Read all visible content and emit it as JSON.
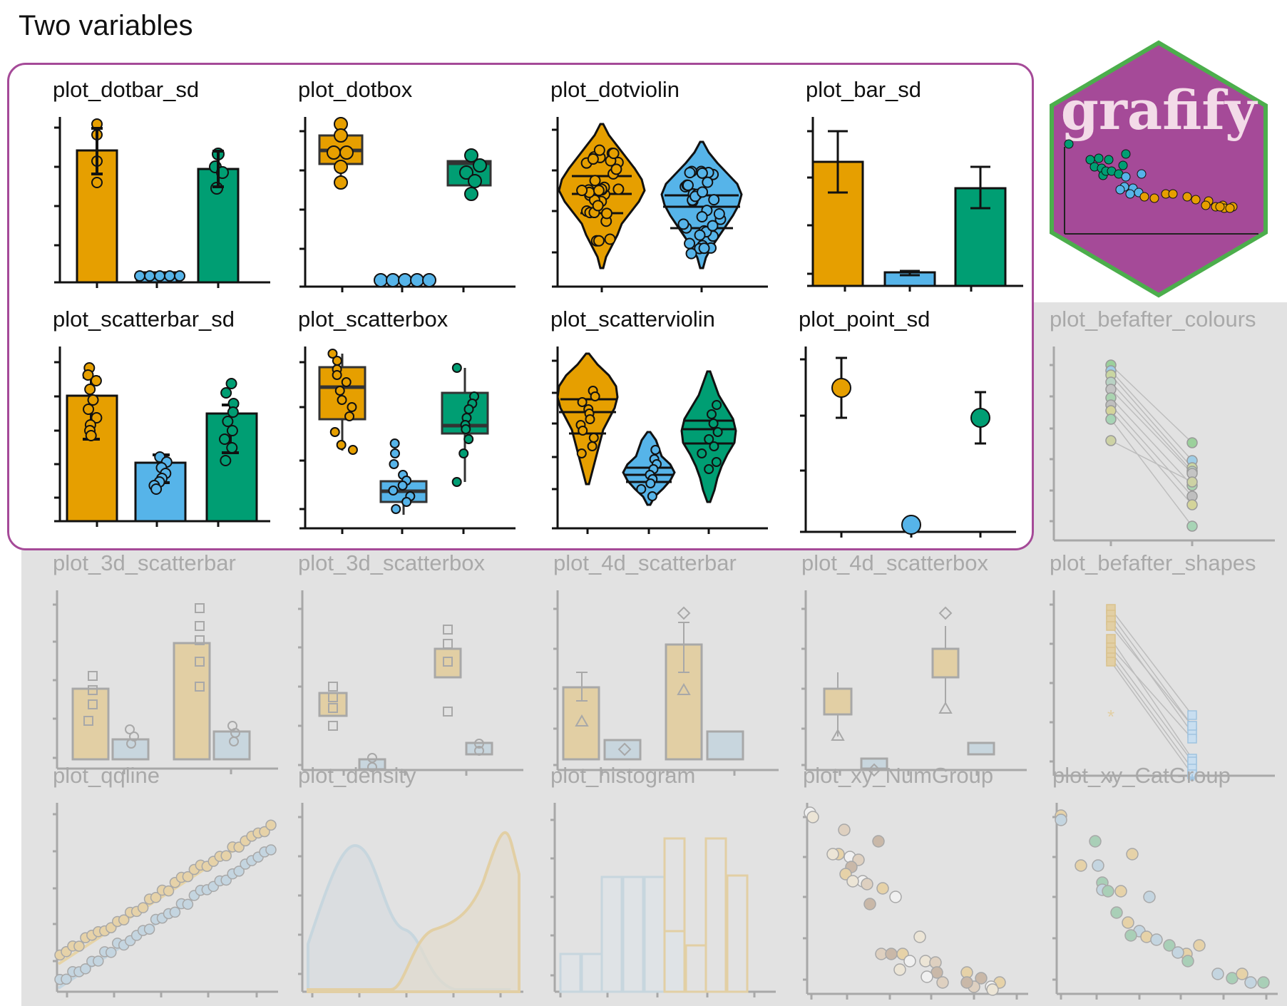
{
  "page": {
    "title": "Two variables"
  },
  "colors": {
    "highlight_border": "#a54a98",
    "dim_background": "#e2e2e2",
    "orange": "#e69f00",
    "blue": "#56b4e9",
    "green": "#009e73",
    "logo_fill": "#a54a98",
    "logo_border": "#4cae4c"
  },
  "logo": {
    "text": "grafify"
  },
  "panels": [
    {
      "id": "dotbar",
      "title": "plot_dotbar_sd",
      "active": true
    },
    {
      "id": "dotbox",
      "title": "plot_dotbox",
      "active": true
    },
    {
      "id": "dotviolin",
      "title": "plot_dotviolin",
      "active": true
    },
    {
      "id": "barsd",
      "title": "plot_bar_sd",
      "active": true
    },
    {
      "id": "scatterbar",
      "title": "plot_scatterbar_sd",
      "active": true
    },
    {
      "id": "scatterbox",
      "title": "plot_scatterbox",
      "active": true
    },
    {
      "id": "scatterviolin",
      "title": "plot_scatterviolin",
      "active": true
    },
    {
      "id": "pointsd",
      "title": "plot_point_sd",
      "active": true
    },
    {
      "id": "befafter_colours",
      "title": "plot_befafter_colours",
      "active": false
    },
    {
      "id": "3dbar",
      "title": "plot_3d_scatterbar",
      "active": false
    },
    {
      "id": "3dbox",
      "title": "plot_3d_scatterbox",
      "active": false
    },
    {
      "id": "4dbar",
      "title": "plot_4d_scatterbar",
      "active": false
    },
    {
      "id": "4dbox",
      "title": "plot_4d_scatterbox",
      "active": false
    },
    {
      "id": "befafter_shapes",
      "title": "plot_befafter_shapes",
      "active": false
    },
    {
      "id": "qqline",
      "title": "plot_qqline",
      "active": false
    },
    {
      "id": "density",
      "title": "plot_density",
      "active": false
    },
    {
      "id": "histogram",
      "title": "plot_histogram",
      "active": false
    },
    {
      "id": "xy_num",
      "title": "plot_xy_NumGroup",
      "active": false
    },
    {
      "id": "xy_cat",
      "title": "plot_xy_CatGroup",
      "active": false
    }
  ]
}
